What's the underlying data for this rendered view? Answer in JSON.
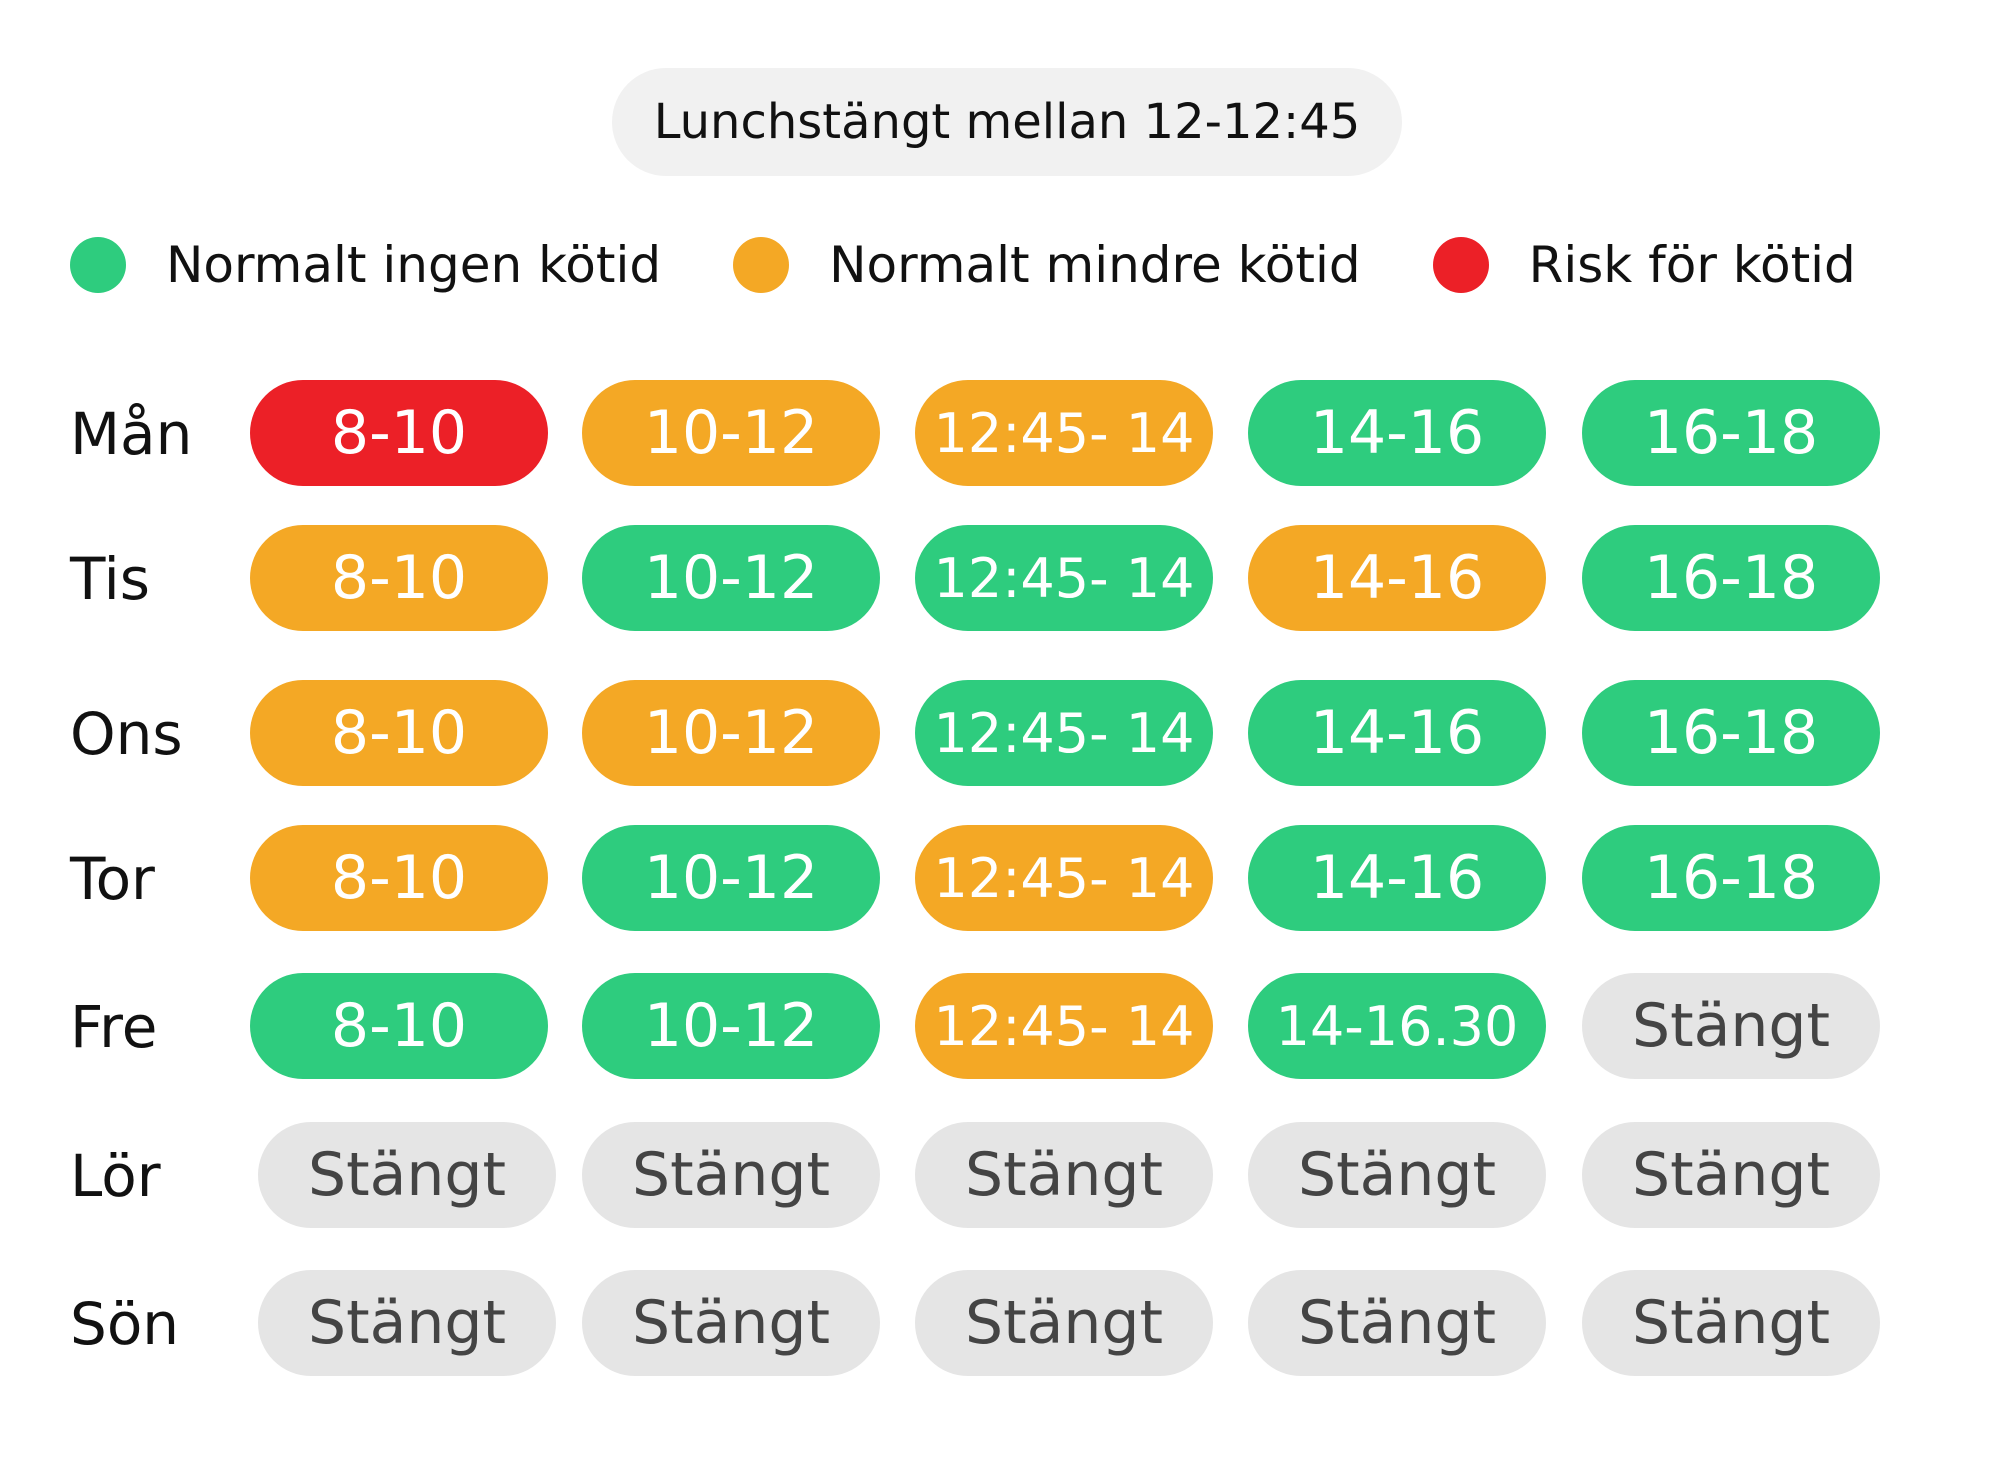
{
  "notice": "Lunchstängt mellan 12-12:45",
  "colors": {
    "green": "#2ecc7e",
    "orange": "#f4a825",
    "red": "#ec2027",
    "closed": "#e5e5e5"
  },
  "legend": [
    {
      "label": "Normalt ingen kötid",
      "color": "#2ecc7e"
    },
    {
      "label": "Normalt mindre kötid",
      "color": "#f4a825"
    },
    {
      "label": "Risk för kötid",
      "color": "#ec2027"
    }
  ],
  "schedule": [
    {
      "day": "Mån",
      "slots": [
        {
          "text": "8-10",
          "status": "red"
        },
        {
          "text": "10-12",
          "status": "orange"
        },
        {
          "text": "12:45- 14",
          "status": "orange"
        },
        {
          "text": "14-16",
          "status": "green"
        },
        {
          "text": "16-18",
          "status": "green"
        }
      ]
    },
    {
      "day": "Tis",
      "slots": [
        {
          "text": "8-10",
          "status": "orange"
        },
        {
          "text": "10-12",
          "status": "green"
        },
        {
          "text": "12:45- 14",
          "status": "green"
        },
        {
          "text": "14-16",
          "status": "orange"
        },
        {
          "text": "16-18",
          "status": "green"
        }
      ]
    },
    {
      "day": "Ons",
      "slots": [
        {
          "text": "8-10",
          "status": "orange"
        },
        {
          "text": "10-12",
          "status": "orange"
        },
        {
          "text": "12:45- 14",
          "status": "green"
        },
        {
          "text": "14-16",
          "status": "green"
        },
        {
          "text": "16-18",
          "status": "green"
        }
      ]
    },
    {
      "day": "Tor",
      "slots": [
        {
          "text": "8-10",
          "status": "orange"
        },
        {
          "text": "10-12",
          "status": "green"
        },
        {
          "text": "12:45- 14",
          "status": "orange"
        },
        {
          "text": "14-16",
          "status": "green"
        },
        {
          "text": "16-18",
          "status": "green"
        }
      ]
    },
    {
      "day": "Fre",
      "slots": [
        {
          "text": "8-10",
          "status": "green"
        },
        {
          "text": "10-12",
          "status": "green"
        },
        {
          "text": "12:45- 14",
          "status": "orange"
        },
        {
          "text": "14-16.30",
          "status": "green"
        },
        {
          "text": "Stängt",
          "status": "closed"
        }
      ]
    },
    {
      "day": "Lör",
      "slots": [
        {
          "text": "Stängt",
          "status": "closed"
        },
        {
          "text": "Stängt",
          "status": "closed"
        },
        {
          "text": "Stängt",
          "status": "closed"
        },
        {
          "text": "Stängt",
          "status": "closed"
        },
        {
          "text": "Stängt",
          "status": "closed"
        }
      ]
    },
    {
      "day": "Sön",
      "slots": [
        {
          "text": "Stängt",
          "status": "closed"
        },
        {
          "text": "Stängt",
          "status": "closed"
        },
        {
          "text": "Stängt",
          "status": "closed"
        },
        {
          "text": "Stängt",
          "status": "closed"
        },
        {
          "text": "Stängt",
          "status": "closed"
        }
      ]
    }
  ]
}
